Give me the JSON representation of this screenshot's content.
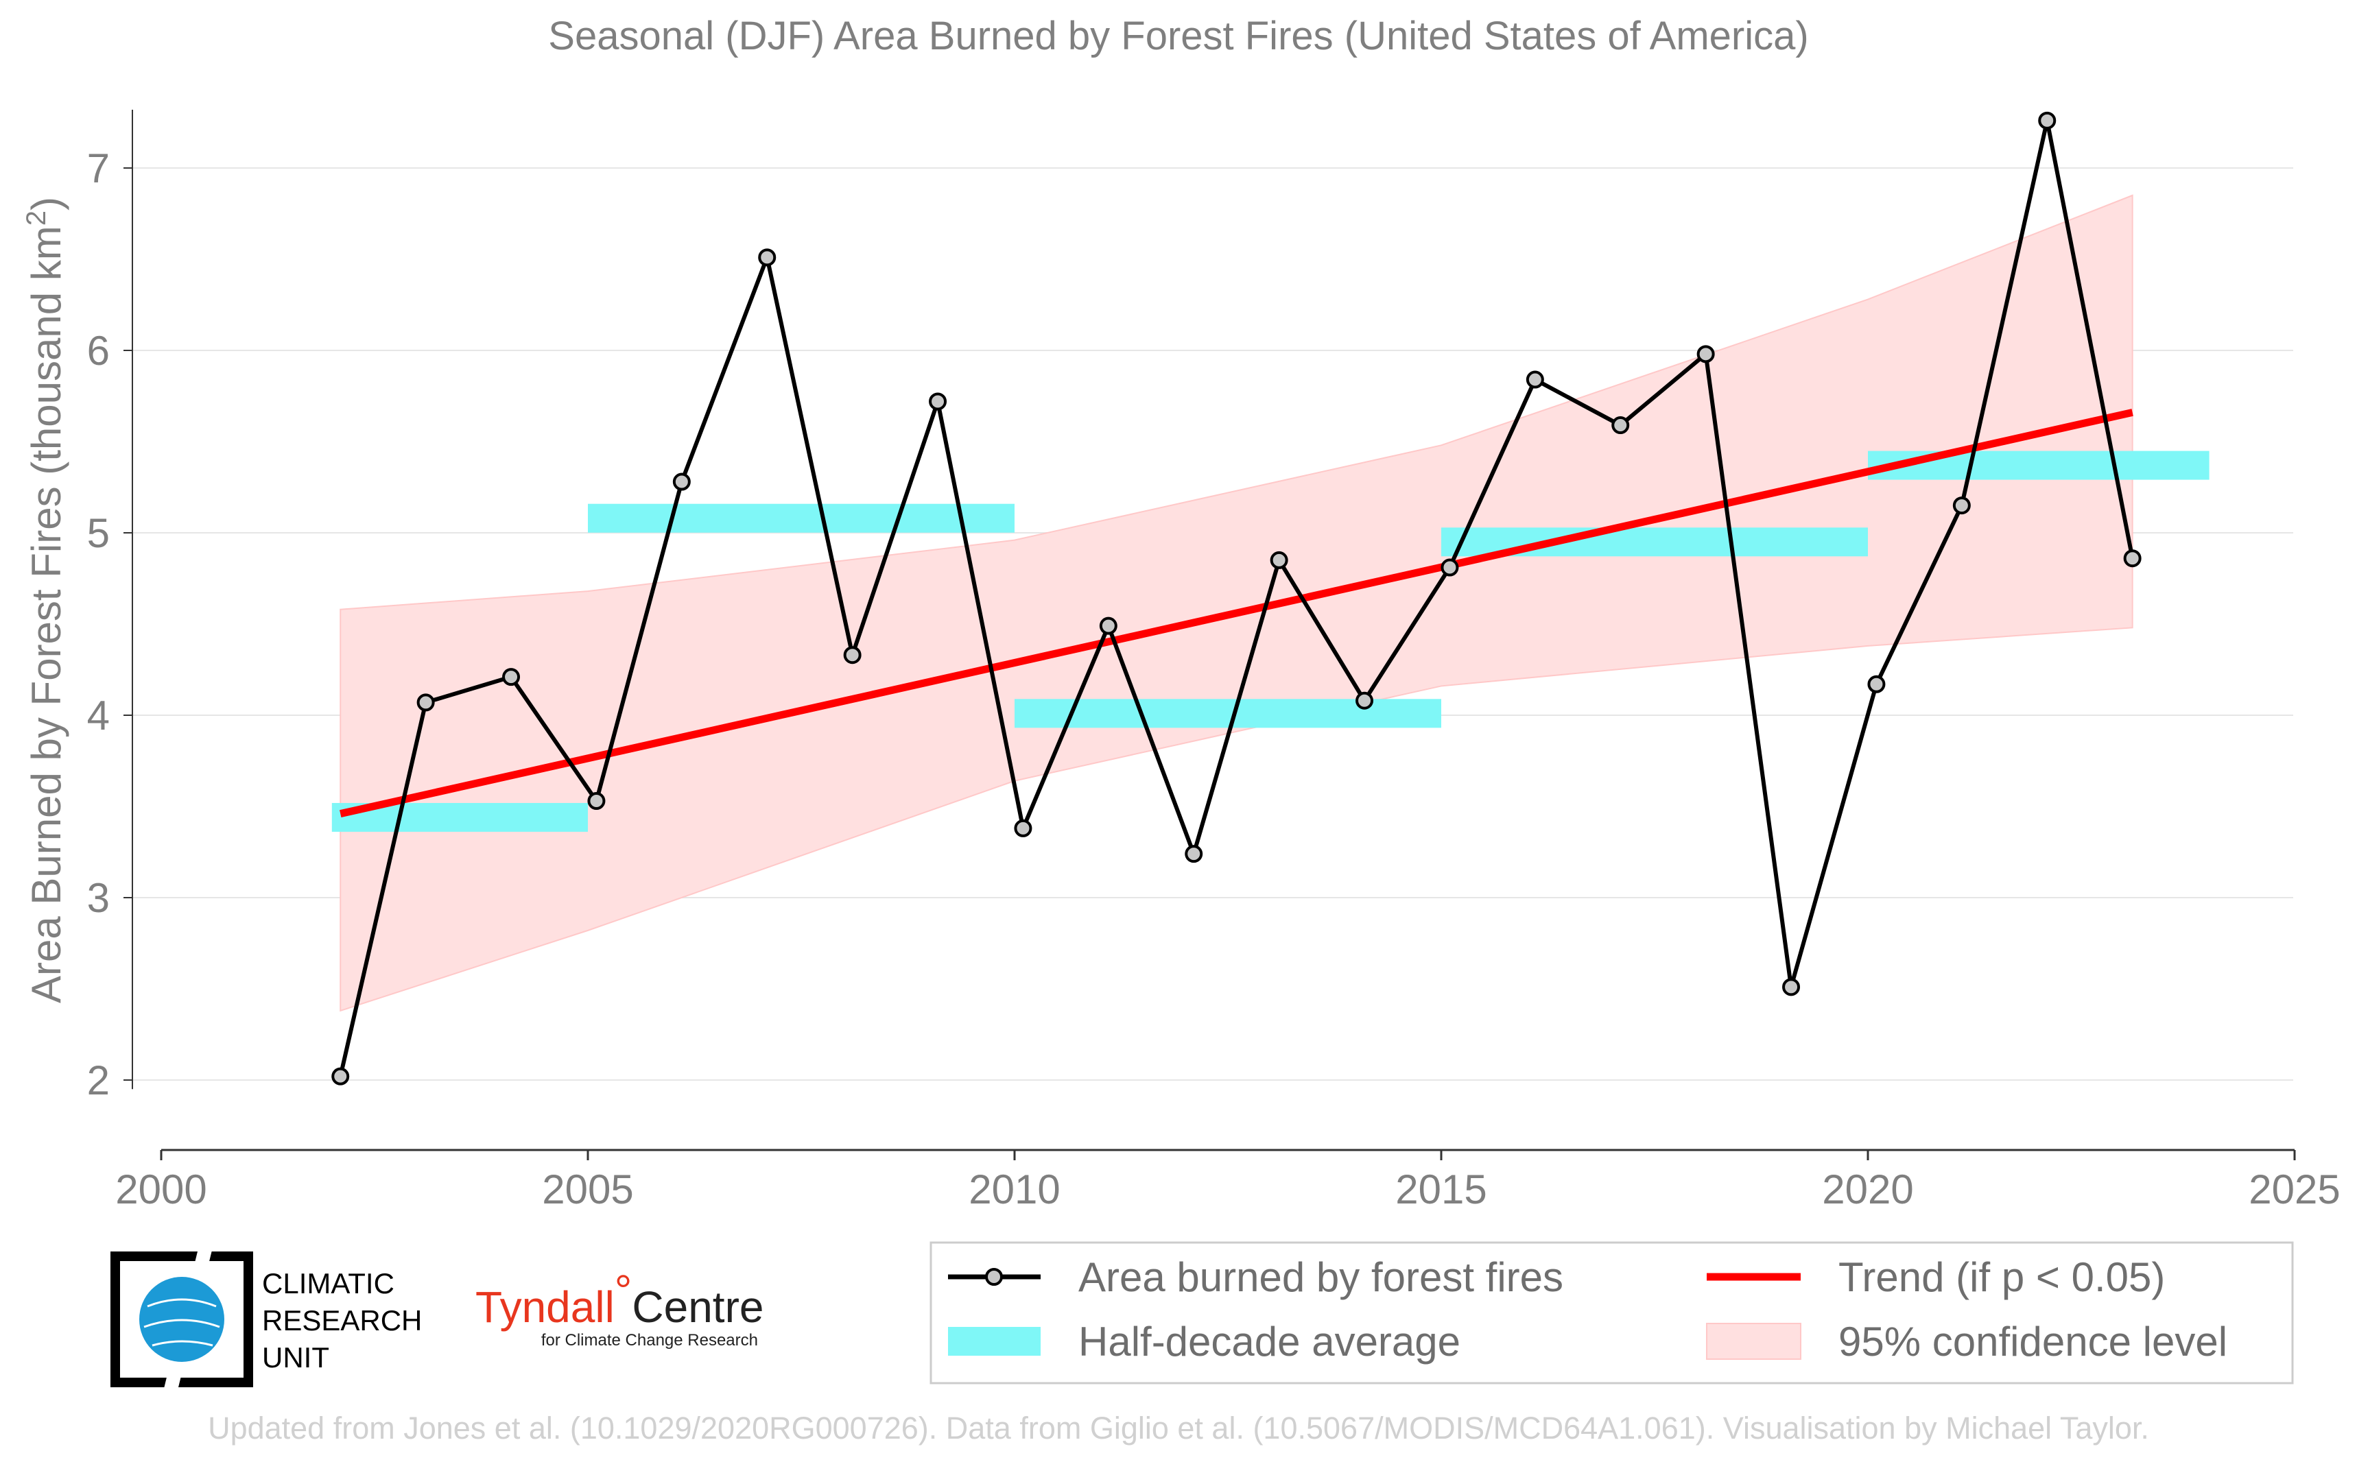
{
  "title": "Seasonal (DJF) Area Burned by Forest Fires (United States of America)",
  "ylabel": "Area Burned by Forest Fires (thousand km",
  "ylabel_sup": "2",
  "ylabel_close": ")",
  "legend": {
    "series": "Area burned by forest fires",
    "trend": "Trend (if p < 0.05)",
    "halfdecade": "Half-decade average",
    "ci": "95% confidence level"
  },
  "footer": "Updated from Jones et al. (10.1029/2020RG000726). Data from Giglio et al. (10.5067/MODIS/MCD64A1.061). Visualisation by Michael Taylor.",
  "logos": {
    "cru_lines": [
      "CLIMATIC",
      "RESEARCH",
      "UNIT"
    ],
    "tyndall_main": "Tyndall",
    "tyndall_deg": "°",
    "tyndall_centre": "Centre",
    "tyndall_sub": "for Climate Change Research"
  },
  "colors": {
    "series": "#000000",
    "marker_fill": "#c8c8c8",
    "trend": "#ff0000",
    "halfdecade": "#7ff7f7",
    "ci": "#ffe0e0",
    "ci_edge": "#ffc8c8",
    "grid": "#e6e6e6",
    "text": "#7f7f7f"
  },
  "chart_data": {
    "type": "line",
    "title": "Seasonal (DJF) Area Burned by Forest Fires (United States of America)",
    "xlabel": "",
    "ylabel": "Area Burned by Forest Fires (thousand km²)",
    "xlim": [
      2000,
      2025
    ],
    "ylim": [
      1.95,
      7.25
    ],
    "x_ticks": [
      2000,
      2005,
      2010,
      2015,
      2020,
      2025
    ],
    "y_ticks": [
      2,
      3,
      4,
      5,
      6,
      7
    ],
    "grid": "horizontal",
    "legend_position": "bottom-right",
    "series": [
      {
        "name": "Area burned by forest fires",
        "x": [
          2002.1,
          2003.1,
          2004.1,
          2005.1,
          2006.1,
          2007.1,
          2008.1,
          2009.1,
          2010.1,
          2011.1,
          2012.1,
          2013.1,
          2014.1,
          2015.1,
          2016.1,
          2017.1,
          2018.1,
          2019.1,
          2020.1,
          2021.1,
          2022.1,
          2023.1
        ],
        "values": [
          2.02,
          4.07,
          4.21,
          3.53,
          5.28,
          6.51,
          4.33,
          5.72,
          3.38,
          4.49,
          3.24,
          4.85,
          4.08,
          4.81,
          5.84,
          5.59,
          5.98,
          2.51,
          4.17,
          5.15,
          7.26,
          4.86
        ]
      }
    ],
    "half_decade_average": [
      {
        "x_start": 2002,
        "x_end": 2005,
        "value": 3.44
      },
      {
        "x_start": 2005,
        "x_end": 2010,
        "value": 5.08
      },
      {
        "x_start": 2010,
        "x_end": 2015,
        "value": 4.01
      },
      {
        "x_start": 2015,
        "x_end": 2020,
        "value": 4.95
      },
      {
        "x_start": 2020,
        "x_end": 2024,
        "value": 5.37
      }
    ],
    "trend": {
      "name": "Trend (if p < 0.05)",
      "x": [
        2002.1,
        2023.1
      ],
      "values": [
        3.46,
        5.66
      ]
    },
    "confidence_band": {
      "name": "95% confidence level",
      "x": [
        2002.1,
        2005,
        2010,
        2015,
        2020,
        2023.1
      ],
      "lower": [
        2.38,
        2.82,
        3.64,
        4.16,
        4.38,
        4.48
      ],
      "upper": [
        4.58,
        4.68,
        4.96,
        5.48,
        6.28,
        6.85
      ]
    }
  }
}
